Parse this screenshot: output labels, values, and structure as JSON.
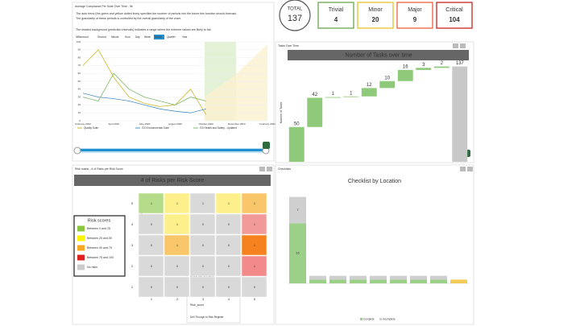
{
  "kpis": [
    {
      "label": "TOTAL",
      "value": 137,
      "color": "#333333"
    },
    {
      "label": "Trivial",
      "value": 4,
      "color": "#6aa84f"
    },
    {
      "label": "Minor",
      "value": 20,
      "color": "#e6c229"
    },
    {
      "label": "Major",
      "value": 9,
      "color": "#e8603c"
    },
    {
      "label": "Critical",
      "value": 104,
      "color": "#cc2222"
    }
  ],
  "compliance": {
    "title": "Average Compliance Per Suite Over Time - 5k",
    "description": [
      "The auto trend (the green and yellow dotted lines) specifies the number of periods into the future this function should forecast.",
      "The granularity of these periods is controlled by the overall granularity of the chart.",
      "The shaded background (prediction intervals) indicates a range where the extreme values are likely to fall."
    ],
    "ranges": [
      "Millisecond",
      "Second",
      "Minute",
      "Hour",
      "Day",
      "Week",
      "Month",
      "Quarter",
      "Year"
    ],
    "selected_range": "Month",
    "chart_data": {
      "type": "line",
      "categories": [
        "February 2020",
        null,
        "April 2020",
        null,
        "June 2020",
        null,
        "August 2020",
        null,
        "October 2020",
        null,
        "December 2020",
        null,
        "February 2021"
      ],
      "series": [
        {
          "name": "Quality Suite",
          "color": "#c9b82a",
          "values": [
            70,
            90,
            55,
            30,
            22,
            18,
            20,
            40,
            8,
            null,
            null,
            null,
            null
          ]
        },
        {
          "name": "GS Environmental Suite",
          "color": "#4a90c8",
          "values": [
            35,
            30,
            28,
            25,
            20,
            15,
            12,
            10,
            15,
            null,
            null,
            null,
            null
          ]
        },
        {
          "name": "GS Health and Safety - Updated",
          "color": "#7fb86a",
          "values": [
            30,
            25,
            60,
            40,
            30,
            25,
            20,
            30,
            25,
            null,
            null,
            null,
            null
          ]
        }
      ],
      "ylim": [
        0,
        100
      ],
      "yticks": [
        0,
        10,
        20,
        30,
        40,
        50,
        60,
        70,
        80,
        90,
        100
      ]
    }
  },
  "tasks": {
    "panel_title": "Tasks Over Time",
    "chart_data": {
      "type": "waterfall",
      "title": "Number of Tasks over time",
      "y_label": "Number of Tasks",
      "categories": [
        null,
        null,
        null,
        null,
        null,
        null,
        null,
        null,
        null,
        null
      ],
      "values": [
        50,
        42,
        1,
        1,
        12,
        10,
        16,
        3,
        2,
        137
      ],
      "total_index": 9,
      "ylim": [
        0,
        140
      ],
      "color": "#8fca7a",
      "total_color": "#c8c8c8"
    }
  },
  "risk": {
    "panel_title": "Risk matrix - # of Risks per Risk Score",
    "title": "# of Risks per Risk Score",
    "y_label": "Likelihood",
    "row_labels": [
      5,
      4,
      3,
      2,
      1
    ],
    "col_labels": [
      1,
      2,
      3,
      4,
      5
    ],
    "cells": [
      [
        {
          "value": 1,
          "color": "#b5dc8a"
        },
        {
          "value": 1,
          "color": "#fdf08a"
        },
        {
          "value": 1,
          "color": "#d9d9d9"
        },
        {
          "value": 1,
          "color": "#fdf08a"
        },
        {
          "value": 1,
          "color": "#f9c66a"
        }
      ],
      [
        {
          "value": 0,
          "color": "#d9d9d9"
        },
        {
          "value": 1,
          "color": "#fdf08a"
        },
        {
          "value": 0,
          "color": "#d9d9d9"
        },
        {
          "value": 0,
          "color": "#d9d9d9"
        },
        {
          "value": 1,
          "color": "#f29a9a"
        }
      ],
      [
        {
          "value": 0,
          "color": "#d9d9d9"
        },
        {
          "value": 1,
          "color": "#f9c66a"
        },
        {
          "value": 0,
          "color": "#d9d9d9"
        },
        {
          "value": 0,
          "color": "#d9d9d9"
        },
        {
          "value": 1,
          "color": "#f5821f"
        }
      ],
      [
        {
          "value": 0,
          "color": "#d9d9d9"
        },
        {
          "value": 0,
          "color": "#d9d9d9"
        },
        {
          "value": 0,
          "color": "#d9d9d9"
        },
        {
          "value": 0,
          "color": "#d9d9d9"
        },
        {
          "value": 1,
          "color": "#f28a8a"
        }
      ],
      [
        {
          "value": 0,
          "color": "#d9d9d9"
        },
        {
          "value": 0,
          "color": "#d9d9d9"
        },
        {
          "value": 0,
          "color": "#d9d9d9"
        },
        {
          "value": 0,
          "color": "#d9d9d9"
        },
        {
          "value": 0,
          "color": "#d9d9d9"
        }
      ]
    ],
    "legend": {
      "title": "Risk scores",
      "items": [
        {
          "label": "Between 0 and 25",
          "color": "#8cc63f"
        },
        {
          "label": "Between 25 and 50",
          "color": "#fff200"
        },
        {
          "label": "Between 50 and 75",
          "color": "#f7a823"
        },
        {
          "label": "Between 75 and 100",
          "color": "#e02020"
        },
        {
          "label": "No risks",
          "color": "#cccccc"
        }
      ]
    },
    "menu": {
      "title": "Multi-Dimension",
      "items": [
        "Severity",
        "Likelihood",
        "Risk_score"
      ],
      "footer": "Drill Through to Risk Register"
    }
  },
  "checklists": {
    "panel_title": "Checklists",
    "chart_data": {
      "type": "stacked-bar",
      "title": "Checklist by Location",
      "categories": [
        null,
        null,
        null,
        null,
        null,
        null,
        null,
        null,
        null
      ],
      "series": [
        {
          "name": "Complete",
          "color": "#9ccf88",
          "values": [
            16,
            1,
            1,
            1,
            1,
            1,
            1,
            1,
            1
          ]
        },
        {
          "name": "Incomplete",
          "color": "#cfcfcf",
          "values": [
            7,
            1,
            1,
            1,
            1,
            1,
            1,
            1,
            0
          ]
        }
      ],
      "highlight_index": 8,
      "highlight_color": "#f3cc5a",
      "ylim": [
        0,
        24
      ]
    }
  }
}
